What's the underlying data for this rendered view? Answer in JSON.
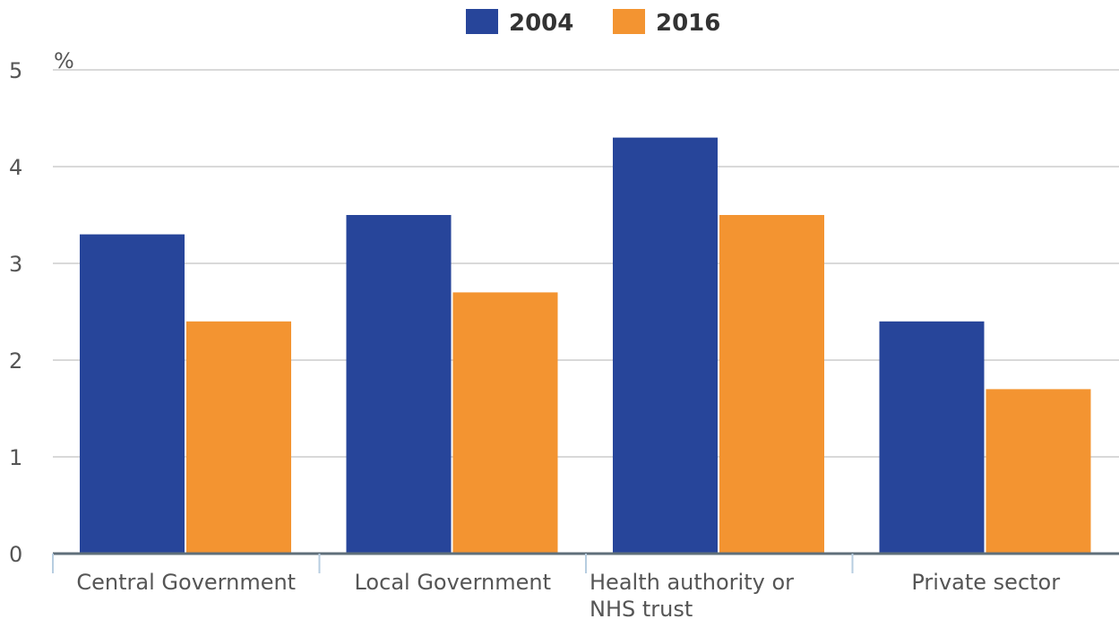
{
  "chart_data": {
    "type": "bar",
    "title": "",
    "xlabel": "",
    "ylabel": "%",
    "ylim": [
      0,
      5
    ],
    "yticks": [
      "0",
      "1",
      "2",
      "3",
      "4",
      "5"
    ],
    "categories": [
      [
        "Central Government"
      ],
      [
        "Local Government"
      ],
      [
        "Health authority or",
        "NHS trust"
      ],
      [
        "Private sector"
      ]
    ],
    "series": [
      {
        "name": "2004",
        "color": "#27459a",
        "values": [
          3.3,
          3.5,
          4.3,
          2.4
        ]
      },
      {
        "name": "2016",
        "color": "#f39431",
        "values": [
          2.4,
          2.7,
          3.5,
          1.7
        ]
      }
    ],
    "grid": true,
    "legend_position": "top-center"
  }
}
